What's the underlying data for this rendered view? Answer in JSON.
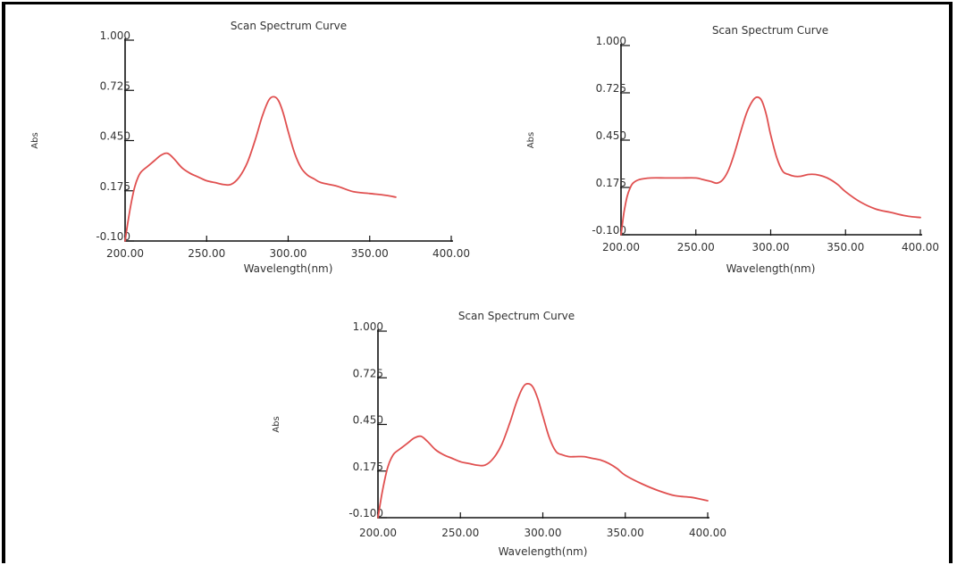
{
  "chart_data": [
    {
      "type": "line",
      "title": "Scan Spectrum Curve",
      "xlabel": "Wavelength(nm)",
      "ylabel": "Abs",
      "xlim": [
        200,
        400
      ],
      "ylim": [
        -0.1,
        1.0
      ],
      "xticks": [
        "200.00",
        "250.00",
        "300.00",
        "350.00",
        "400.00"
      ],
      "yticks": [
        "-0.100",
        "0.175",
        "0.450",
        "0.725",
        "1.000"
      ],
      "grid": false,
      "line_color": "#e05050",
      "series": [
        {
          "x": [
            200,
            202,
            204,
            206,
            208,
            210,
            214,
            218,
            222,
            226,
            230,
            235,
            240,
            245,
            250,
            255,
            260,
            265,
            270,
            275,
            280,
            284,
            288,
            291,
            294,
            297,
            300,
            304,
            308,
            312,
            316,
            320,
            330,
            340,
            350,
            360,
            366
          ],
          "y": [
            -0.1,
            0.02,
            0.12,
            0.2,
            0.25,
            0.28,
            0.31,
            0.34,
            0.37,
            0.38,
            0.35,
            0.3,
            0.27,
            0.25,
            0.23,
            0.22,
            0.21,
            0.21,
            0.25,
            0.33,
            0.46,
            0.58,
            0.67,
            0.69,
            0.67,
            0.6,
            0.5,
            0.38,
            0.3,
            0.26,
            0.24,
            0.22,
            0.2,
            0.17,
            0.16,
            0.15,
            0.14
          ]
        }
      ]
    },
    {
      "type": "line",
      "title": "Scan Spectrum Curve",
      "xlabel": "Wavelength(nm)",
      "ylabel": "Abs",
      "xlim": [
        200,
        400
      ],
      "ylim": [
        -0.1,
        1.0
      ],
      "xticks": [
        "200.00",
        "250.00",
        "300.00",
        "350.00",
        "400.00"
      ],
      "yticks": [
        "-0.100",
        "0.175",
        "0.450",
        "0.725",
        "1.000"
      ],
      "grid": false,
      "line_color": "#e05050",
      "series": [
        {
          "x": [
            200,
            202,
            204,
            206,
            208,
            212,
            220,
            230,
            240,
            250,
            255,
            260,
            264,
            268,
            272,
            276,
            280,
            284,
            288,
            291,
            294,
            297,
            300,
            304,
            308,
            312,
            316,
            320,
            325,
            330,
            335,
            340,
            345,
            350,
            360,
            370,
            380,
            390,
            400
          ],
          "y": [
            -0.1,
            0.03,
            0.12,
            0.17,
            0.2,
            0.22,
            0.23,
            0.23,
            0.23,
            0.23,
            0.22,
            0.21,
            0.2,
            0.22,
            0.28,
            0.38,
            0.5,
            0.61,
            0.68,
            0.7,
            0.68,
            0.6,
            0.48,
            0.35,
            0.27,
            0.25,
            0.24,
            0.24,
            0.25,
            0.25,
            0.24,
            0.22,
            0.19,
            0.15,
            0.09,
            0.05,
            0.03,
            0.01,
            0.0
          ]
        }
      ]
    },
    {
      "type": "line",
      "title": "Scan Spectrum Curve",
      "xlabel": "Wavelength(nm)",
      "ylabel": "Abs",
      "xlim": [
        200,
        400
      ],
      "ylim": [
        -0.1,
        1.0
      ],
      "xticks": [
        "200.00",
        "250.00",
        "300.00",
        "350.00",
        "400.00"
      ],
      "yticks": [
        "-0.100",
        "0.175",
        "0.450",
        "0.725",
        "1.000"
      ],
      "grid": false,
      "line_color": "#e05050",
      "series": [
        {
          "x": [
            200,
            202,
            204,
            206,
            208,
            210,
            214,
            218,
            222,
            226,
            230,
            235,
            240,
            245,
            250,
            255,
            260,
            265,
            270,
            275,
            280,
            284,
            288,
            291,
            294,
            297,
            300,
            304,
            308,
            312,
            316,
            320,
            325,
            330,
            335,
            340,
            345,
            350,
            360,
            370,
            380,
            390,
            400
          ],
          "y": [
            -0.1,
            0.02,
            0.12,
            0.2,
            0.25,
            0.28,
            0.31,
            0.34,
            0.37,
            0.38,
            0.35,
            0.3,
            0.27,
            0.25,
            0.23,
            0.22,
            0.21,
            0.21,
            0.25,
            0.33,
            0.46,
            0.58,
            0.67,
            0.69,
            0.67,
            0.6,
            0.5,
            0.37,
            0.29,
            0.27,
            0.26,
            0.26,
            0.26,
            0.25,
            0.24,
            0.22,
            0.19,
            0.15,
            0.1,
            0.06,
            0.03,
            0.02,
            0.0
          ]
        }
      ]
    }
  ]
}
